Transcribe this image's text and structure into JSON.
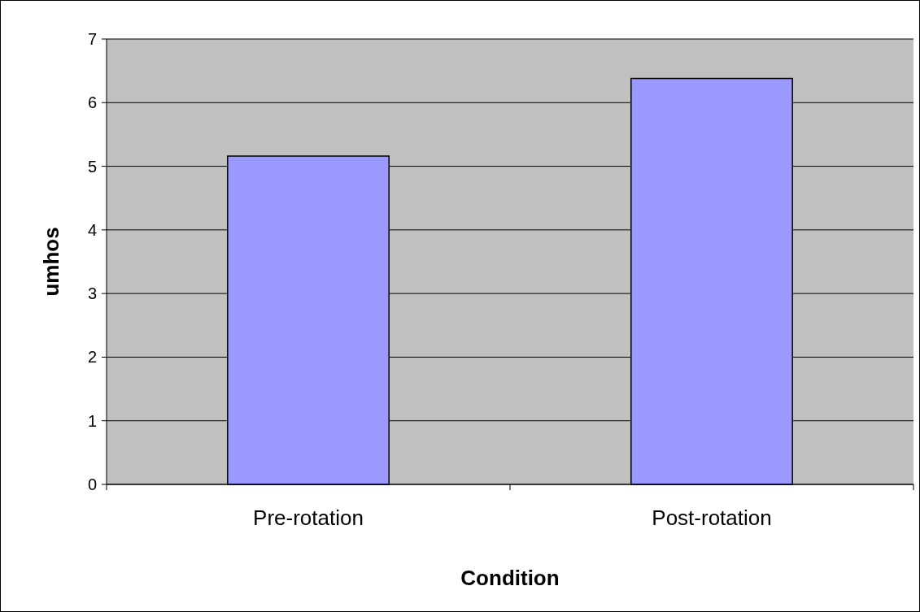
{
  "chart_data": {
    "type": "bar",
    "xlabel": "Condition",
    "ylabel": "umhos",
    "categories": [
      "Pre-rotation",
      "Post-rotation"
    ],
    "values": [
      5.16,
      6.38
    ],
    "color": "#9999ff",
    "ylim": [
      0,
      7
    ],
    "yticks": [
      0,
      1,
      2,
      3,
      4,
      5,
      6,
      7
    ],
    "grid": "y"
  }
}
